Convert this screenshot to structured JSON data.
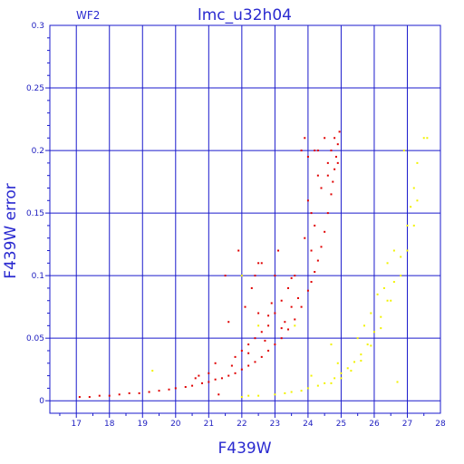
{
  "chart_data": {
    "type": "scatter",
    "title": "lmc_u32h04",
    "chip_label": "WF2",
    "xlabel": "F439W",
    "ylabel": "F439W error",
    "xlim": [
      16.2,
      28.0
    ],
    "ylim": [
      -0.01,
      0.3
    ],
    "x_ticks": [
      "17",
      "18",
      "19",
      "20",
      "21",
      "22",
      "23",
      "24",
      "25",
      "26",
      "27",
      "28"
    ],
    "y_ticks": [
      "0",
      "0.05",
      "0.1",
      "0.15",
      "0.2",
      "0.25",
      "0.3"
    ],
    "x_tick_values": [
      17,
      18,
      19,
      20,
      21,
      22,
      23,
      24,
      25,
      26,
      27,
      28
    ],
    "y_tick_values": [
      0,
      0.05,
      0.1,
      0.15,
      0.2,
      0.25,
      0.3
    ],
    "grid": true,
    "colors": {
      "grid": "#1a1acc",
      "axis": "#1a1acc",
      "text": "#2a2ad0",
      "red_series": "#e00000",
      "yellow_series": "#f2f200"
    },
    "series": [
      {
        "color": "#e00000",
        "points": [
          [
            17.1,
            0.003
          ],
          [
            17.4,
            0.003
          ],
          [
            17.7,
            0.004
          ],
          [
            18.0,
            0.004
          ],
          [
            18.3,
            0.005
          ],
          [
            18.6,
            0.006
          ],
          [
            18.9,
            0.006
          ],
          [
            19.2,
            0.007
          ],
          [
            19.5,
            0.008
          ],
          [
            19.8,
            0.009
          ],
          [
            20.0,
            0.01
          ],
          [
            20.3,
            0.011
          ],
          [
            20.5,
            0.012
          ],
          [
            20.8,
            0.014
          ],
          [
            21.0,
            0.015
          ],
          [
            21.2,
            0.017
          ],
          [
            21.4,
            0.018
          ],
          [
            21.6,
            0.02
          ],
          [
            21.8,
            0.022
          ],
          [
            22.0,
            0.025
          ],
          [
            22.2,
            0.028
          ],
          [
            22.4,
            0.031
          ],
          [
            22.6,
            0.035
          ],
          [
            22.8,
            0.04
          ],
          [
            23.0,
            0.045
          ],
          [
            23.2,
            0.05
          ],
          [
            23.4,
            0.057
          ],
          [
            23.6,
            0.065
          ],
          [
            23.8,
            0.075
          ],
          [
            24.0,
            0.088
          ],
          [
            24.1,
            0.095
          ],
          [
            24.2,
            0.103
          ],
          [
            24.3,
            0.112
          ],
          [
            24.4,
            0.123
          ],
          [
            24.5,
            0.135
          ],
          [
            24.6,
            0.15
          ],
          [
            24.7,
            0.165
          ],
          [
            24.75,
            0.175
          ],
          [
            24.8,
            0.185
          ],
          [
            24.85,
            0.195
          ],
          [
            24.9,
            0.205
          ],
          [
            24.95,
            0.215
          ],
          [
            24.2,
            0.2
          ],
          [
            24.5,
            0.21
          ],
          [
            24.0,
            0.195
          ],
          [
            24.3,
            0.18
          ],
          [
            24.6,
            0.19
          ],
          [
            24.8,
            0.21
          ],
          [
            24.4,
            0.17
          ],
          [
            24.1,
            0.15
          ],
          [
            23.9,
            0.13
          ],
          [
            24.0,
            0.16
          ],
          [
            24.3,
            0.2
          ],
          [
            24.7,
            0.2
          ],
          [
            23.6,
            0.1
          ],
          [
            23.4,
            0.09
          ],
          [
            23.2,
            0.08
          ],
          [
            23.0,
            0.07
          ],
          [
            22.8,
            0.06
          ],
          [
            22.6,
            0.055
          ],
          [
            22.4,
            0.05
          ],
          [
            22.2,
            0.045
          ],
          [
            22.0,
            0.04
          ],
          [
            21.8,
            0.035
          ],
          [
            22.5,
            0.07
          ],
          [
            23.0,
            0.1
          ],
          [
            22.9,
            0.078
          ],
          [
            23.3,
            0.063
          ],
          [
            23.7,
            0.082
          ],
          [
            24.1,
            0.12
          ],
          [
            23.5,
            0.075
          ],
          [
            22.7,
            0.048
          ],
          [
            21.9,
            0.12
          ],
          [
            21.5,
            0.1
          ],
          [
            22.3,
            0.09
          ],
          [
            22.1,
            0.075
          ],
          [
            21.6,
            0.063
          ],
          [
            22.6,
            0.11
          ],
          [
            23.1,
            0.12
          ],
          [
            22.4,
            0.1
          ],
          [
            21.2,
            0.03
          ],
          [
            20.6,
            0.018
          ],
          [
            21.0,
            0.022
          ],
          [
            21.7,
            0.028
          ],
          [
            22.5,
            0.11
          ],
          [
            23.8,
            0.2
          ],
          [
            23.9,
            0.21
          ],
          [
            24.2,
            0.14
          ],
          [
            24.6,
            0.18
          ],
          [
            24.9,
            0.19
          ],
          [
            21.3,
            0.005
          ],
          [
            20.7,
            0.02
          ],
          [
            22.8,
            0.068
          ],
          [
            23.5,
            0.098
          ],
          [
            23.2,
            0.058
          ],
          [
            22.2,
            0.038
          ]
        ]
      },
      {
        "color": "#f2f200",
        "points": [
          [
            19.3,
            0.024
          ],
          [
            22.0,
            0.003
          ],
          [
            22.5,
            0.004
          ],
          [
            23.0,
            0.005
          ],
          [
            23.5,
            0.007
          ],
          [
            24.0,
            0.01
          ],
          [
            24.5,
            0.014
          ],
          [
            24.8,
            0.018
          ],
          [
            25.0,
            0.022
          ],
          [
            25.2,
            0.026
          ],
          [
            25.4,
            0.031
          ],
          [
            25.6,
            0.037
          ],
          [
            25.8,
            0.045
          ],
          [
            26.0,
            0.055
          ],
          [
            26.2,
            0.067
          ],
          [
            26.4,
            0.08
          ],
          [
            26.6,
            0.095
          ],
          [
            26.8,
            0.115
          ],
          [
            27.0,
            0.14
          ],
          [
            27.1,
            0.155
          ],
          [
            27.2,
            0.17
          ],
          [
            27.3,
            0.19
          ],
          [
            27.5,
            0.21
          ],
          [
            27.2,
            0.14
          ],
          [
            27.0,
            0.12
          ],
          [
            26.8,
            0.1
          ],
          [
            26.5,
            0.08
          ],
          [
            26.2,
            0.058
          ],
          [
            25.9,
            0.044
          ],
          [
            25.6,
            0.032
          ],
          [
            25.3,
            0.024
          ],
          [
            25.0,
            0.018
          ],
          [
            24.7,
            0.014
          ],
          [
            24.3,
            0.012
          ],
          [
            23.8,
            0.008
          ],
          [
            23.3,
            0.006
          ],
          [
            26.6,
            0.12
          ],
          [
            26.3,
            0.09
          ],
          [
            25.9,
            0.07
          ],
          [
            25.5,
            0.05
          ],
          [
            22.0,
            0.1
          ],
          [
            22.5,
            0.06
          ],
          [
            23.6,
            0.06
          ],
          [
            24.7,
            0.045
          ],
          [
            26.9,
            0.2
          ],
          [
            27.3,
            0.16
          ],
          [
            27.6,
            0.21
          ],
          [
            26.4,
            0.11
          ],
          [
            25.7,
            0.06
          ],
          [
            26.1,
            0.085
          ],
          [
            24.9,
            0.03
          ],
          [
            24.1,
            0.02
          ],
          [
            22.2,
            0.004
          ],
          [
            26.7,
            0.015
          ]
        ]
      }
    ]
  }
}
